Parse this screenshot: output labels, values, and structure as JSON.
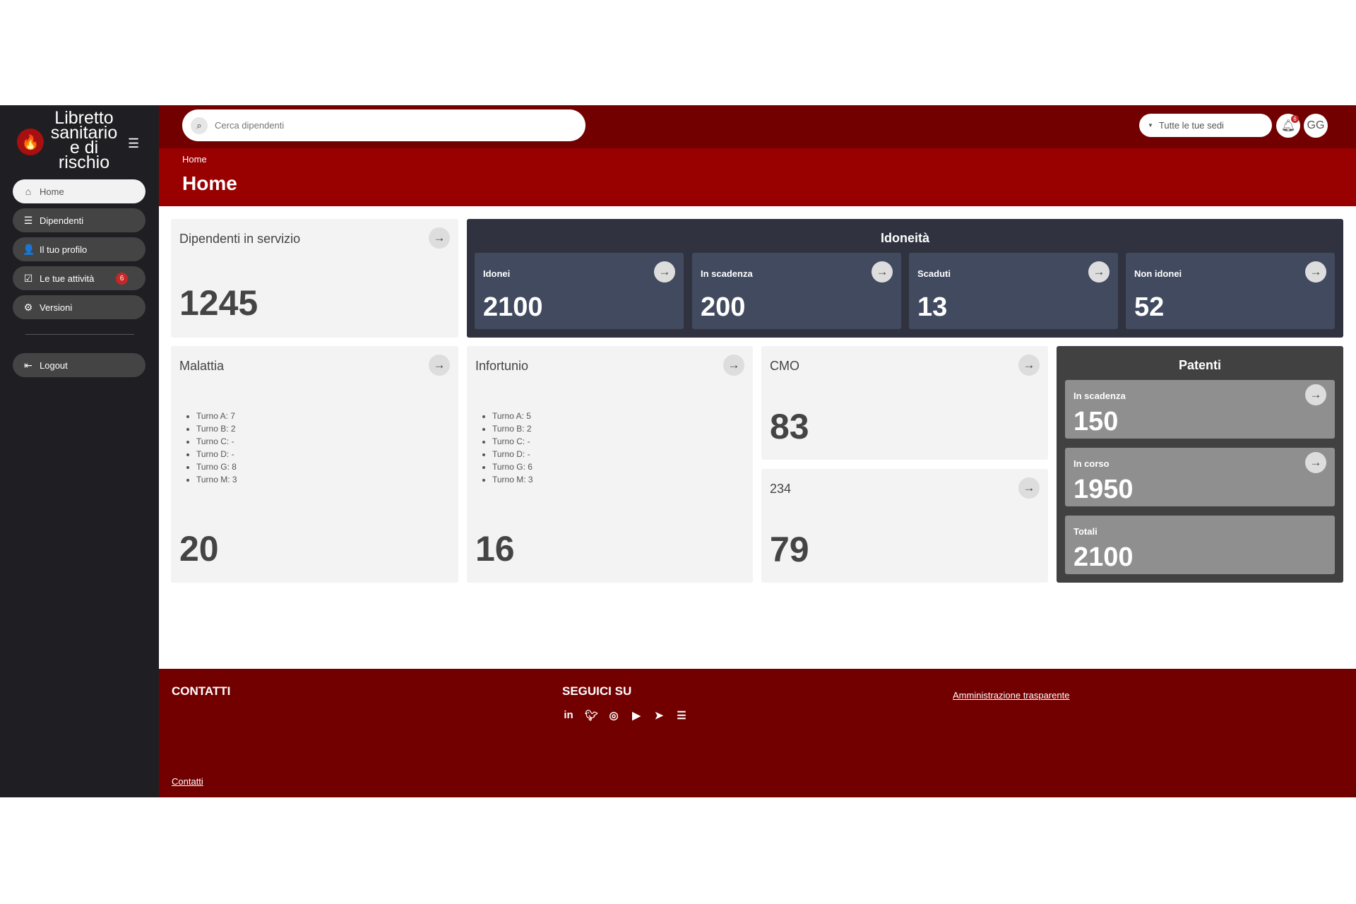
{
  "app": {
    "title": "Libretto sanitario e di rischio"
  },
  "sidebar": {
    "items": [
      {
        "label": "Home",
        "icon": "home-icon"
      },
      {
        "label": "Dipendenti",
        "icon": "list-icon"
      },
      {
        "label": "Il tuo profilo",
        "icon": "user-icon"
      },
      {
        "label": "Le tue attività",
        "icon": "calendar-check-icon",
        "badge": "6"
      },
      {
        "label": "Versioni",
        "icon": "gear-icon"
      }
    ],
    "logout": "Logout"
  },
  "header": {
    "search_placeholder": "Cerca dipendenti",
    "sedi": "Tutte le tue sedi",
    "notifications": "6",
    "avatar": "GG"
  },
  "breadcrumb": "Home",
  "page_title": "Home",
  "cards": {
    "servizio": {
      "title": "Dipendenti in servizio",
      "value": "1245"
    },
    "idoneita": {
      "title": "Idoneità",
      "items": [
        {
          "label": "Idonei",
          "value": "2100"
        },
        {
          "label": "In scadenza",
          "value": "200"
        },
        {
          "label": "Scaduti",
          "value": "13"
        },
        {
          "label": "Non idonei",
          "value": "52"
        }
      ]
    },
    "malattia": {
      "title": "Malattia",
      "turni": [
        "Turno A: 7",
        "Turno B: 2",
        "Turno C: -",
        "Turno D: -",
        "Turno G: 8",
        "Turno M: 3"
      ],
      "value": "20"
    },
    "infortunio": {
      "title": "Infortunio",
      "turni": [
        "Turno A: 5",
        "Turno B: 2",
        "Turno C: -",
        "Turno D: -",
        "Turno G: 6",
        "Turno M: 3"
      ],
      "value": "16"
    },
    "cmo": {
      "title": "CMO",
      "value": "83"
    },
    "c234": {
      "title": "234",
      "value": "79"
    },
    "patenti": {
      "title": "Patenti",
      "items": [
        {
          "label": "In scadenza",
          "value": "150"
        },
        {
          "label": "In corso",
          "value": "1950"
        },
        {
          "label": "Totali",
          "value": "2100"
        }
      ]
    }
  },
  "footer": {
    "contatti_title": "CONTATTI",
    "seguici_title": "SEGUICI SU",
    "amministrazione": "Amministrazione trasparente",
    "contatti_link": "Contatti",
    "social": [
      "linkedin-icon",
      "twitter-icon",
      "instagram-icon",
      "youtube-icon",
      "telegram-icon",
      "rss-icon"
    ]
  },
  "colors": {
    "sidebar": "#1f1f23",
    "topbar": "#730000",
    "band": "#990000",
    "idoneita": "#30333f",
    "idoneita_card": "#414a5e",
    "patenti": "#414141",
    "patenti_card": "#8f8f8f"
  }
}
